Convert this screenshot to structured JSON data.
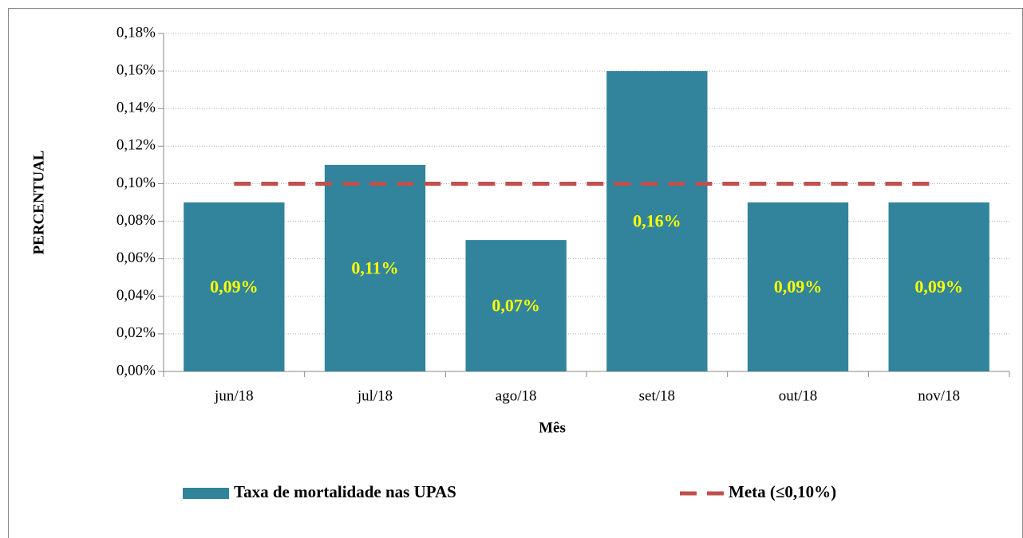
{
  "chart_data": {
    "type": "bar",
    "y_label": "PERCENTUAL",
    "x_label": "Mês",
    "categories": [
      "jun/18",
      "jul/18",
      "ago/18",
      "set/18",
      "out/18",
      "nov/18"
    ],
    "series": [
      {
        "name": "Taxa de mortalidade nas UPAS",
        "type": "bar",
        "color": "#31849b",
        "values": [
          0.09,
          0.11,
          0.07,
          0.16,
          0.09,
          0.09
        ],
        "value_labels": [
          "0,09%",
          "0,11%",
          "0,07%",
          "0,16%",
          "0,09%",
          "0,09%"
        ],
        "label_color": "#ffff00"
      },
      {
        "name": "Meta (≤0,10%)",
        "type": "line",
        "color": "#c0504d",
        "dashed": true,
        "values": [
          0.1,
          0.1,
          0.1,
          0.1,
          0.1,
          0.1
        ]
      }
    ],
    "ylim": [
      0,
      0.18
    ],
    "yticks": [
      {
        "value": 0,
        "label": "0,00%"
      },
      {
        "value": 0.02,
        "label": "0,02%"
      },
      {
        "value": 0.04,
        "label": "0,04%"
      },
      {
        "value": 0.06,
        "label": "0,06%"
      },
      {
        "value": 0.08,
        "label": "0,08%"
      },
      {
        "value": 0.1,
        "label": "0,10%"
      },
      {
        "value": 0.12,
        "label": "0,12%"
      },
      {
        "value": 0.14,
        "label": "0,14%"
      },
      {
        "value": 0.16,
        "label": "0,16%"
      },
      {
        "value": 0.18,
        "label": "0,18%"
      }
    ],
    "grid": true,
    "legend": "bottom"
  }
}
